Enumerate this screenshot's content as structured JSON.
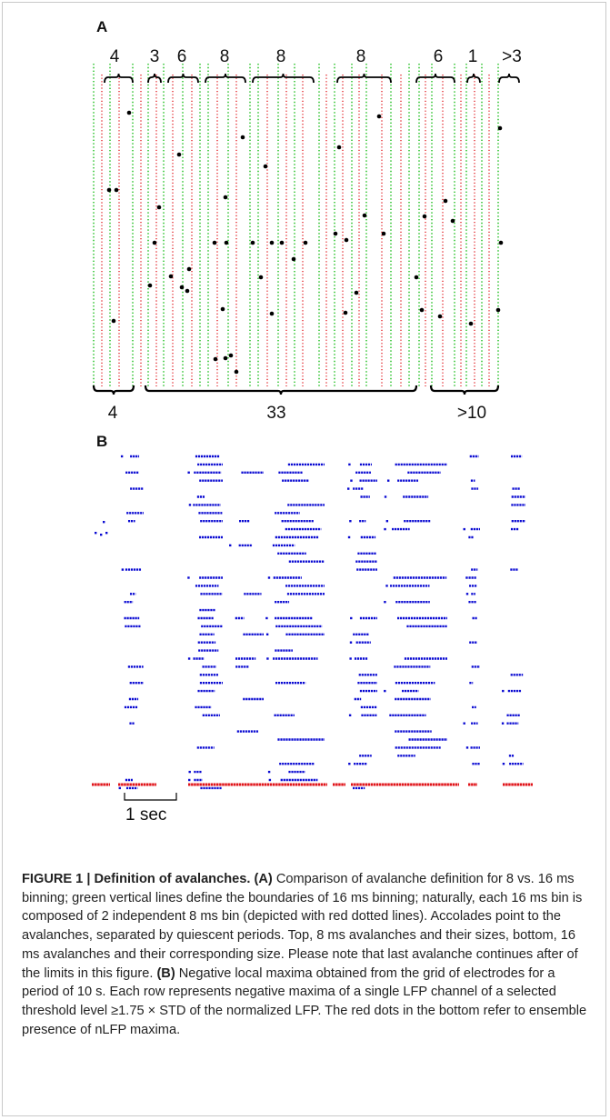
{
  "panel_a": {
    "letter": "A",
    "top_labels": [
      "4",
      "3",
      "6",
      "8",
      "8",
      "8",
      "6",
      "1",
      ">3"
    ],
    "bottom_labels": [
      "4",
      "33",
      ">10"
    ],
    "colors": {
      "green": "#31c431",
      "red": "#e0141a",
      "dot": "#000000"
    }
  },
  "panel_b": {
    "letter": "B",
    "scale_label": "1 sec",
    "colors": {
      "blue": "#0a0ad2",
      "red": "#e0141a"
    }
  },
  "caption": {
    "figure_label": "FIGURE 1 | Definition of avalanches.",
    "a_label": "(A)",
    "a_text": "Comparison of avalanche definition for 8 vs. 16 ms binning; green vertical lines define the boundaries of 16 ms binning; naturally, each 16 ms bin is composed of 2 independent 8 ms bin (depicted with red dotted lines). Accolades point to the avalanches, separated by quiescent periods. Top, 8 ms avalanches and their sizes, bottom, 16 ms avalanches and their corresponding size. Please note that last avalanche continues after of the limits in this figure.",
    "b_label": "(B)",
    "b_text": "Negative local maxima obtained from the grid of electrodes for a period of 10 s. Each row represents negative maxima of a single LFP channel of a selected threshold level ≥1.75 × STD of the normalized LFP. The red dots in the bottom refer to ensemble presence of nLFP maxima."
  }
}
